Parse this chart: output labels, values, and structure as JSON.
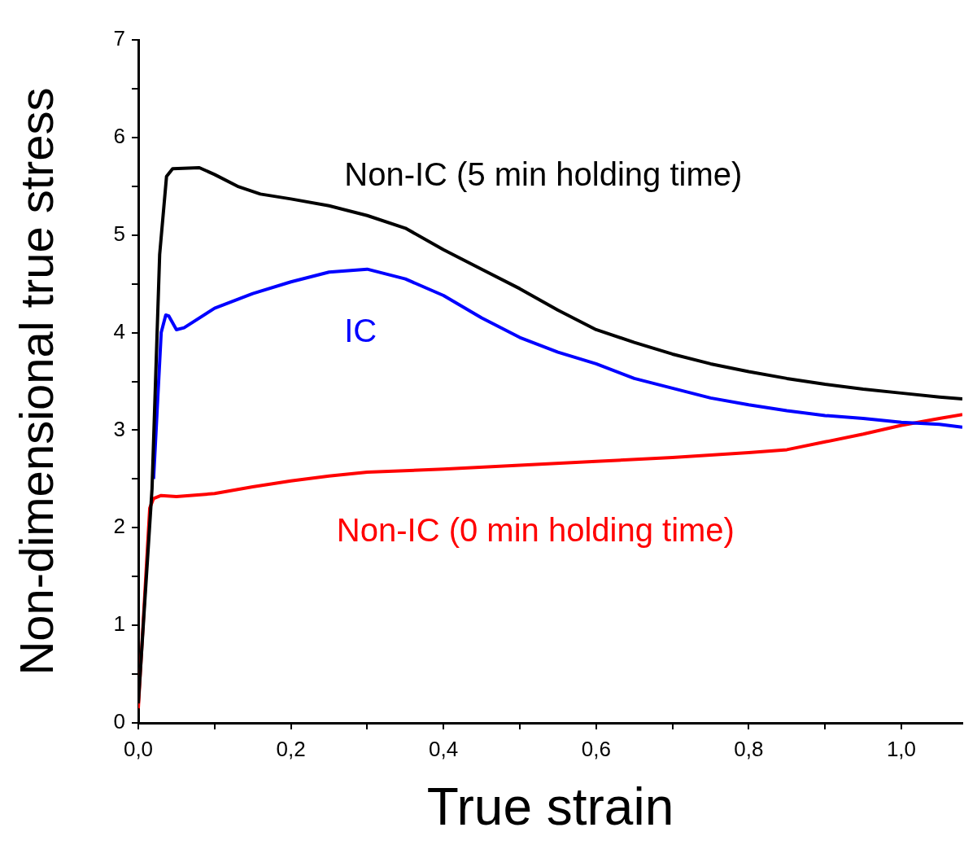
{
  "chart_data": {
    "type": "line",
    "xlabel": "True strain",
    "ylabel": "Non-dimensional true stress",
    "xlim": [
      0,
      1.08
    ],
    "ylim": [
      0,
      7
    ],
    "xticks": [
      {
        "value": 0,
        "label": "0,0"
      },
      {
        "value": 0.1,
        "label": null
      },
      {
        "value": 0.2,
        "label": "0,2"
      },
      {
        "value": 0.3,
        "label": null
      },
      {
        "value": 0.4,
        "label": "0,4"
      },
      {
        "value": 0.5,
        "label": null
      },
      {
        "value": 0.6,
        "label": "0,6"
      },
      {
        "value": 0.7,
        "label": null
      },
      {
        "value": 0.8,
        "label": "0,8"
      },
      {
        "value": 0.9,
        "label": null
      },
      {
        "value": 1.0,
        "label": "1,0"
      }
    ],
    "yticks": [
      0,
      {
        "value": 0.5,
        "label": null
      },
      1,
      {
        "value": 1.5,
        "label": null
      },
      2,
      {
        "value": 2.5,
        "label": null
      },
      3,
      {
        "value": 3.5,
        "label": null
      },
      4,
      {
        "value": 4.5,
        "label": null
      },
      5,
      {
        "value": 5.5,
        "label": null
      },
      6,
      {
        "value": 6.5,
        "label": null
      },
      7
    ],
    "grid": false,
    "legend": false,
    "marker": "none",
    "line_style": "solid",
    "series": [
      {
        "name": "Non-IC (5 min holding time)",
        "color": "#000000",
        "x": [
          0,
          0.018,
          0.028,
          0.037,
          0.045,
          0.08,
          0.1,
          0.13,
          0.16,
          0.2,
          0.25,
          0.3,
          0.35,
          0.4,
          0.45,
          0.5,
          0.55,
          0.6,
          0.65,
          0.7,
          0.75,
          0.8,
          0.85,
          0.9,
          0.95,
          1.0,
          1.05,
          1.08
        ],
        "values": [
          0.2,
          2.4,
          4.8,
          5.6,
          5.68,
          5.69,
          5.62,
          5.5,
          5.42,
          5.37,
          5.3,
          5.2,
          5.07,
          4.85,
          4.65,
          4.45,
          4.23,
          4.03,
          3.9,
          3.78,
          3.68,
          3.6,
          3.53,
          3.47,
          3.42,
          3.38,
          3.34,
          3.32
        ]
      },
      {
        "name": "IC",
        "color": "#0000ff",
        "x": [
          0.02,
          0.03,
          0.036,
          0.04,
          0.05,
          0.06,
          0.1,
          0.15,
          0.2,
          0.25,
          0.3,
          0.35,
          0.4,
          0.45,
          0.5,
          0.55,
          0.6,
          0.65,
          0.7,
          0.75,
          0.8,
          0.85,
          0.9,
          0.95,
          1.0,
          1.05,
          1.08
        ],
        "values": [
          2.5,
          4.0,
          4.18,
          4.17,
          4.03,
          4.05,
          4.25,
          4.4,
          4.52,
          4.62,
          4.65,
          4.55,
          4.38,
          4.15,
          3.95,
          3.8,
          3.68,
          3.53,
          3.43,
          3.33,
          3.26,
          3.2,
          3.15,
          3.12,
          3.08,
          3.06,
          3.03
        ]
      },
      {
        "name": "Non-IC (0 min holding time)",
        "color": "#ff0000",
        "x": [
          0,
          0.015,
          0.02,
          0.03,
          0.05,
          0.1,
          0.15,
          0.2,
          0.25,
          0.3,
          0.4,
          0.5,
          0.6,
          0.7,
          0.8,
          0.85,
          0.9,
          0.95,
          1.0,
          1.05,
          1.08
        ],
        "values": [
          0.15,
          2.2,
          2.3,
          2.33,
          2.32,
          2.35,
          2.42,
          2.48,
          2.53,
          2.57,
          2.6,
          2.64,
          2.68,
          2.72,
          2.77,
          2.8,
          2.88,
          2.96,
          3.05,
          3.12,
          3.16
        ]
      }
    ]
  }
}
